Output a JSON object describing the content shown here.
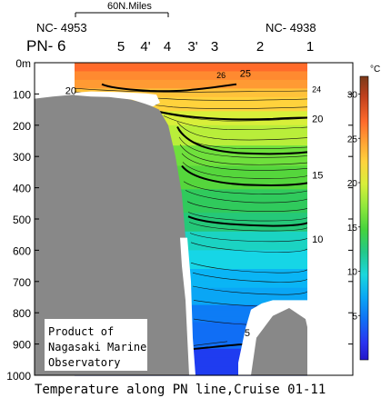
{
  "chart_data": {
    "type": "heatmap",
    "title": "Temperature along PN line,Cruise 01-11",
    "scale_bar_label": "60N.Miles",
    "station_ids": {
      "left": "NC- 4953",
      "right": "NC- 4938"
    },
    "line_label": "PN- 6",
    "stations": [
      "5",
      "4'",
      "4",
      "3'",
      "3",
      "2",
      "1"
    ],
    "y_axis": {
      "ticks": [
        "0m",
        "100",
        "200",
        "300",
        "400",
        "500",
        "600",
        "700",
        "800",
        "900",
        "1000"
      ],
      "ylim": [
        0,
        1000
      ],
      "inverted": true
    },
    "colorbar": {
      "unit": "°C",
      "ticks": [
        "30",
        "25",
        "20",
        "15",
        "10",
        "5"
      ],
      "range": [
        0,
        32
      ]
    },
    "contour_labels": [
      {
        "label": "26",
        "x": 0.61,
        "depth": 50
      },
      {
        "label": "25",
        "x": 0.71,
        "depth": 45
      },
      {
        "label": "24",
        "x": 1.02,
        "depth": 95
      },
      {
        "label": "20",
        "x": -0.04,
        "depth": 100
      },
      {
        "label": "20",
        "x": 1.02,
        "depth": 190
      },
      {
        "label": "15",
        "x": 1.02,
        "depth": 370
      },
      {
        "label": "10",
        "x": 1.02,
        "depth": 575
      },
      {
        "label": "5",
        "x": 0.73,
        "depth": 875
      }
    ],
    "note": [
      "Product of",
      "Nagasaki Marine",
      "Observatory"
    ]
  }
}
